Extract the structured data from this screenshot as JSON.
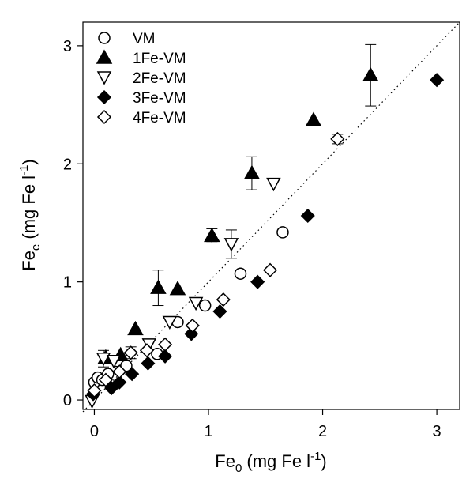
{
  "chart_data": {
    "type": "scatter",
    "xlabel": {
      "base": "Fe",
      "sub": "0",
      "unit_pre": " (mg Fe l",
      "sup": "-1",
      "unit_post": ")"
    },
    "ylabel": {
      "base": "Fe",
      "sub": "e",
      "unit_pre": " (mg Fe l",
      "sup": "-1",
      "unit_post": ")"
    },
    "xlim": [
      -0.1,
      3.2
    ],
    "ylim": [
      -0.08,
      3.2
    ],
    "x_ticks": [
      0,
      1,
      2,
      3
    ],
    "y_ticks": [
      0,
      1,
      2,
      3
    ],
    "x_tick_labels": [
      "0",
      "1",
      "2",
      "3"
    ],
    "y_tick_labels": [
      "0",
      "1",
      "2",
      "3"
    ],
    "reference_line": {
      "style": "dotted",
      "from": [
        -0.1,
        -0.1
      ],
      "to": [
        3.2,
        3.2
      ]
    },
    "grid": false,
    "legend_position": "top-left",
    "series": [
      {
        "name": "VM",
        "marker": "circle-open",
        "points": [
          {
            "x": 0.0,
            "y": 0.15
          },
          {
            "x": 0.03,
            "y": 0.19
          },
          {
            "x": 0.07,
            "y": 0.17
          },
          {
            "x": 0.12,
            "y": 0.22
          },
          {
            "x": 0.2,
            "y": 0.33
          },
          {
            "x": 0.28,
            "y": 0.29
          },
          {
            "x": 0.55,
            "y": 0.39
          },
          {
            "x": 0.73,
            "y": 0.66
          },
          {
            "x": 0.97,
            "y": 0.8
          },
          {
            "x": 1.28,
            "y": 1.07
          },
          {
            "x": 1.65,
            "y": 1.42
          }
        ]
      },
      {
        "name": "1Fe-VM",
        "marker": "triangle-up-filled",
        "points": [
          {
            "x": 0.1,
            "y": 0.36
          },
          {
            "x": 0.23,
            "y": 0.38
          },
          {
            "x": 0.36,
            "y": 0.6
          },
          {
            "x": 0.56,
            "y": 0.95,
            "err": 0.15
          },
          {
            "x": 0.73,
            "y": 0.94
          },
          {
            "x": 1.03,
            "y": 1.39,
            "err": 0.06
          },
          {
            "x": 1.38,
            "y": 1.92,
            "err": 0.14
          },
          {
            "x": 1.92,
            "y": 2.37
          },
          {
            "x": 2.42,
            "y": 2.75,
            "err": 0.26
          }
        ]
      },
      {
        "name": "2Fe-VM",
        "marker": "triangle-down-open",
        "points": [
          {
            "x": -0.02,
            "y": -0.01
          },
          {
            "x": 0.08,
            "y": 0.35,
            "err": 0.07
          },
          {
            "x": 0.17,
            "y": 0.33
          },
          {
            "x": 0.48,
            "y": 0.47
          },
          {
            "x": 0.66,
            "y": 0.66
          },
          {
            "x": 0.89,
            "y": 0.82
          },
          {
            "x": 1.2,
            "y": 1.32,
            "err": 0.12
          },
          {
            "x": 1.57,
            "y": 1.83
          }
        ]
      },
      {
        "name": "3Fe-VM",
        "marker": "diamond-filled",
        "points": [
          {
            "x": -0.01,
            "y": 0.05
          },
          {
            "x": 0.15,
            "y": 0.1
          },
          {
            "x": 0.22,
            "y": 0.15
          },
          {
            "x": 0.33,
            "y": 0.22
          },
          {
            "x": 0.47,
            "y": 0.31
          },
          {
            "x": 0.62,
            "y": 0.37
          },
          {
            "x": 0.85,
            "y": 0.56
          },
          {
            "x": 1.1,
            "y": 0.75
          },
          {
            "x": 1.43,
            "y": 1.0
          },
          {
            "x": 1.87,
            "y": 1.56
          },
          {
            "x": 3.0,
            "y": 2.71
          }
        ]
      },
      {
        "name": "4Fe-VM",
        "marker": "diamond-open",
        "points": [
          {
            "x": 0.0,
            "y": 0.08
          },
          {
            "x": 0.1,
            "y": 0.17
          },
          {
            "x": 0.22,
            "y": 0.24
          },
          {
            "x": 0.32,
            "y": 0.4,
            "err": 0.05
          },
          {
            "x": 0.46,
            "y": 0.42
          },
          {
            "x": 0.62,
            "y": 0.47
          },
          {
            "x": 0.86,
            "y": 0.63
          },
          {
            "x": 1.13,
            "y": 0.85
          },
          {
            "x": 1.54,
            "y": 1.1
          },
          {
            "x": 2.13,
            "y": 2.21,
            "err": 0.04
          }
        ]
      }
    ]
  }
}
